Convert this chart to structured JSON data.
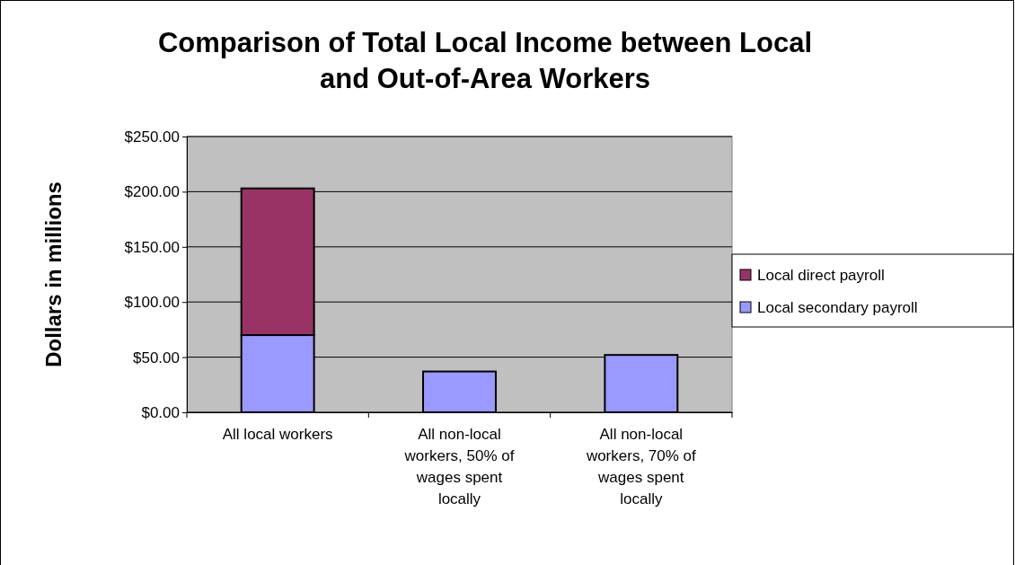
{
  "chart_data": {
    "type": "bar",
    "stacked": true,
    "title": "Comparison of Total Local Income between Local and Out-of-Area Workers",
    "ylabel": "Dollars in millions",
    "categories": [
      "All local workers",
      "All non-local workers, 50% of wages spent locally",
      "All non-local workers, 70% of wages spent locally"
    ],
    "series": [
      {
        "name": "Local secondary payroll",
        "color": "#9999ff",
        "values": [
          70,
          37,
          52
        ]
      },
      {
        "name": "Local direct payroll",
        "color": "#993366",
        "values": [
          133,
          null,
          null
        ]
      }
    ],
    "ylim": [
      0,
      250
    ],
    "yticks": [
      {
        "value": 0,
        "label": "$0.00"
      },
      {
        "value": 50,
        "label": "$50.00"
      },
      {
        "value": 100,
        "label": "$100.00"
      },
      {
        "value": 150,
        "label": "$150.00"
      },
      {
        "value": 200,
        "label": "$200.00"
      },
      {
        "value": 250,
        "label": "$250.00"
      }
    ],
    "grid": "y",
    "legend": "right"
  }
}
